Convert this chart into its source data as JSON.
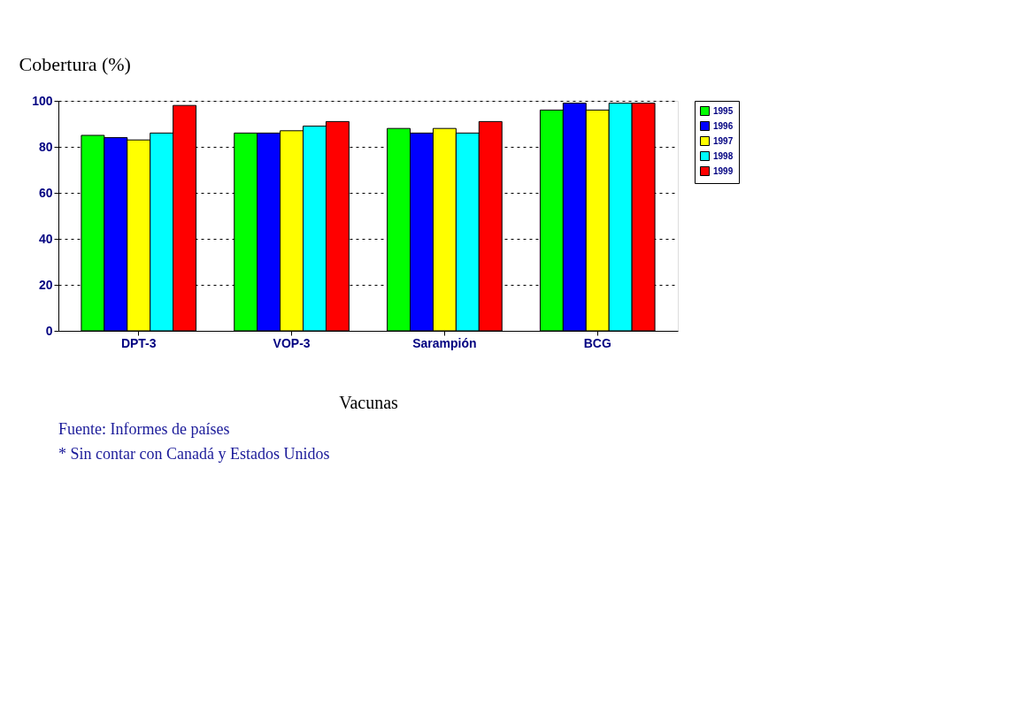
{
  "chart_data": {
    "type": "bar",
    "ylabel": "Cobertura (%)",
    "xlabel": "Vacunas",
    "categories": [
      "DPT-3",
      "VOP-3",
      "Sarampión",
      "BCG"
    ],
    "series": [
      {
        "name": "1995",
        "color": "#00ff00",
        "values": [
          85,
          86,
          88,
          96
        ]
      },
      {
        "name": "1996",
        "color": "#0000ff",
        "values": [
          84,
          86,
          86,
          99
        ]
      },
      {
        "name": "1997",
        "color": "#ffff00",
        "values": [
          83,
          87,
          88,
          96
        ]
      },
      {
        "name": "1998",
        "color": "#00ffff",
        "values": [
          86,
          89,
          86,
          99
        ]
      },
      {
        "name": "1999",
        "color": "#ff0000",
        "values": [
          98,
          91,
          91,
          99
        ]
      }
    ],
    "ylim": [
      0,
      100
    ],
    "yticks": [
      0,
      20,
      40,
      60,
      80,
      100
    ],
    "grid": "y",
    "legend": "right",
    "annotations": [
      "Fuente:  Informes de países",
      "* Sin contar con Canadá y Estados Unidos"
    ]
  }
}
